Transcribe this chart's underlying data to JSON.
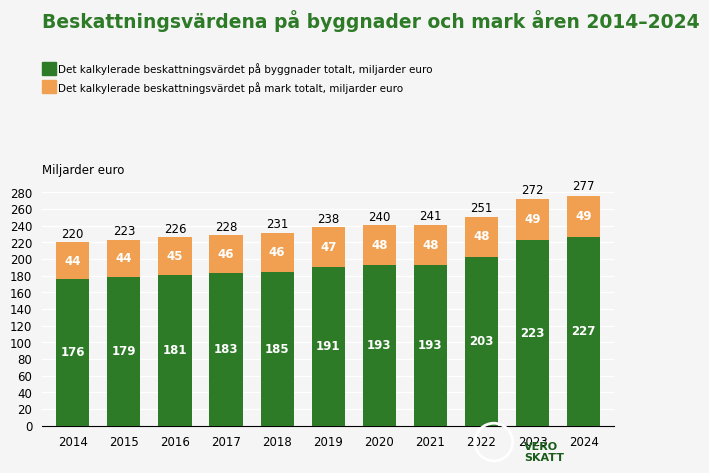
{
  "title": "Beskattningsvärdena på byggnader och mark åren 2014–2024",
  "ylabel": "Miljarder euro",
  "years": [
    2014,
    2015,
    2016,
    2017,
    2018,
    2019,
    2020,
    2021,
    2022,
    2023,
    2024
  ],
  "buildings": [
    176,
    179,
    181,
    183,
    185,
    191,
    193,
    193,
    203,
    223,
    227
  ],
  "land": [
    44,
    44,
    45,
    46,
    46,
    47,
    48,
    48,
    48,
    49,
    49
  ],
  "totals": [
    220,
    223,
    226,
    228,
    231,
    238,
    240,
    241,
    251,
    272,
    277
  ],
  "color_buildings": "#2d7a27",
  "color_land": "#f0a050",
  "background_color": "#f5f5f5",
  "legend_buildings": "Det kalkylerade beskattningsvärdet på byggnader totalt, miljarder euro",
  "legend_land": "Det kalkylerade beskattningsvärdet på mark totalt, miljarder euro",
  "ylim": [
    0,
    290
  ],
  "yticks": [
    0,
    20,
    40,
    60,
    80,
    100,
    120,
    140,
    160,
    180,
    200,
    220,
    240,
    260,
    280
  ],
  "title_color": "#2d7a27",
  "title_fontsize": 13.5,
  "label_fontsize": 8.5,
  "tick_fontsize": 8.5,
  "bar_width": 0.65
}
